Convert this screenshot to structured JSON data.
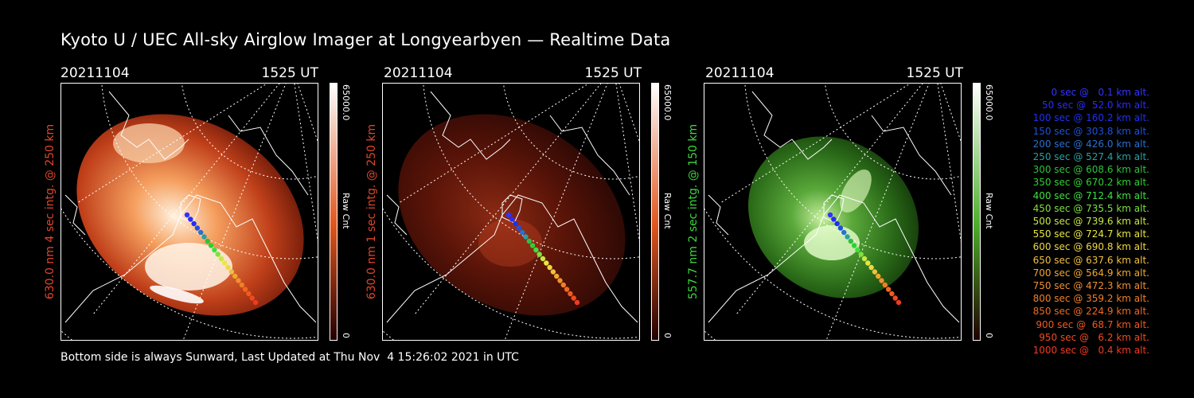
{
  "title": "Kyoto U / UEC All-sky Airglow Imager at Longyearbyen — Realtime Data",
  "footer": "Bottom side is always Sunward, Last Updated at Thu Nov  4 15:26:02 2021 in UTC",
  "panels": [
    {
      "date": "20211104",
      "time": "1525 UT",
      "ylabel": "630.0 nm 4 sec intg. @ 250 km",
      "label_color": "#e0452a",
      "colorbar": {
        "max": "65000.0",
        "min": "0",
        "unit": "Raw Cnt",
        "color": "#e0561f"
      },
      "intensity": "bright"
    },
    {
      "date": "20211104",
      "time": "1525 UT",
      "ylabel": "630.0 nm 1 sec intg. @ 250 km",
      "label_color": "#e0452a",
      "colorbar": {
        "max": "65000.0",
        "min": "0",
        "unit": "Raw Cnt",
        "color": "#e0561f"
      },
      "intensity": "dim"
    },
    {
      "date": "20211104",
      "time": "1525 UT",
      "ylabel": "557.7 nm 2 sec intg. @ 150 km",
      "label_color": "#3ed63e",
      "colorbar": {
        "max": "65000.0",
        "min": "0",
        "unit": "Raw Cnt",
        "color": "#4caf2a"
      },
      "intensity": "green"
    }
  ],
  "legend": [
    {
      "text": "0 sec @   0.1 km alt.",
      "color": "#3333ff"
    },
    {
      "text": "50 sec @  52.0 km alt.",
      "color": "#2a2aff"
    },
    {
      "text": "100 sec @ 160.2 km alt.",
      "color": "#2030ee"
    },
    {
      "text": "150 sec @ 303.8 km alt.",
      "color": "#2050dd"
    },
    {
      "text": "200 sec @ 426.0 km alt.",
      "color": "#2a70d0"
    },
    {
      "text": "250 sec @ 527.4 km alt.",
      "color": "#2aa0a0"
    },
    {
      "text": "300 sec @ 608.6 km alt.",
      "color": "#30c040"
    },
    {
      "text": "350 sec @ 670.2 km alt.",
      "color": "#30d030"
    },
    {
      "text": "400 sec @ 712.4 km alt.",
      "color": "#3ee040"
    },
    {
      "text": "450 sec @ 735.5 km alt.",
      "color": "#7ee040"
    },
    {
      "text": "500 sec @ 739.6 km alt.",
      "color": "#c8e840"
    },
    {
      "text": "550 sec @ 724.7 km alt.",
      "color": "#e8e840"
    },
    {
      "text": "600 sec @ 690.8 km alt.",
      "color": "#f0d840"
    },
    {
      "text": "650 sec @ 637.6 km alt.",
      "color": "#f0c040"
    },
    {
      "text": "700 sec @ 564.9 km alt.",
      "color": "#f0a830"
    },
    {
      "text": "750 sec @ 472.3 km alt.",
      "color": "#f09030"
    },
    {
      "text": "800 sec @ 359.2 km alt.",
      "color": "#f08028"
    },
    {
      "text": "850 sec @ 224.9 km alt.",
      "color": "#f06820"
    },
    {
      "text": "900 sec @  68.7 km alt.",
      "color": "#f05a20"
    },
    {
      "text": "950 sec @   6.2 km alt.",
      "color": "#f04a20"
    },
    {
      "text": "1000 sec @   0.4 km alt.",
      "color": "#f03a20"
    }
  ]
}
